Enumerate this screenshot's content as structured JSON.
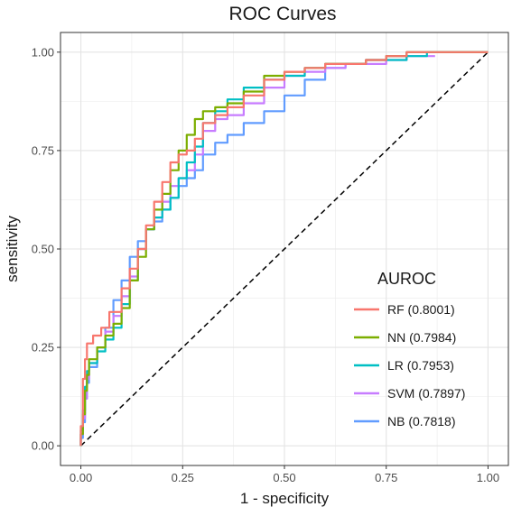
{
  "chart_data": {
    "type": "line",
    "title": "ROC Curves",
    "xlabel": "1 - specificity",
    "ylabel": "sensitivity",
    "xlim": [
      -0.05,
      1.05
    ],
    "ylim": [
      -0.05,
      1.05
    ],
    "x_ticks": [
      0,
      0.25,
      0.5,
      0.75,
      1
    ],
    "x_tick_labels": [
      "0.00",
      "0.25",
      "0.50",
      "0.75",
      "1.00"
    ],
    "y_ticks": [
      0,
      0.25,
      0.5,
      0.75,
      1
    ],
    "y_tick_labels": [
      "0.00",
      "0.25",
      "0.50",
      "0.75",
      "1.00"
    ],
    "grid": true,
    "panel_border": true,
    "legend": {
      "title": "AUROC",
      "position": "inside-bottom-right"
    },
    "reference_line": {
      "style": "dashed",
      "color": "#000000",
      "x": [
        0,
        1
      ],
      "y": [
        0,
        1
      ]
    },
    "series": [
      {
        "name": "RF (0.8001)",
        "color": "#F8766D",
        "x": [
          0,
          0.005,
          0.005,
          0.01,
          0.015,
          0.03,
          0.05,
          0.07,
          0.1,
          0.12,
          0.14,
          0.16,
          0.18,
          0.2,
          0.22,
          0.24,
          0.26,
          0.28,
          0.3,
          0.33,
          0.36,
          0.4,
          0.45,
          0.5,
          0.55,
          0.6,
          0.65,
          0.7,
          0.75,
          0.8,
          0.85,
          0.9,
          0.95,
          1
        ],
        "y": [
          0,
          0.05,
          0.1,
          0.17,
          0.22,
          0.26,
          0.28,
          0.3,
          0.34,
          0.4,
          0.45,
          0.5,
          0.56,
          0.62,
          0.67,
          0.72,
          0.74,
          0.75,
          0.78,
          0.82,
          0.84,
          0.86,
          0.89,
          0.93,
          0.95,
          0.96,
          0.97,
          0.97,
          0.98,
          0.99,
          1,
          1,
          1,
          1
        ]
      },
      {
        "name": "NN (0.7984)",
        "color": "#7CAE00",
        "x": [
          0,
          0.005,
          0.01,
          0.015,
          0.02,
          0.04,
          0.06,
          0.08,
          0.1,
          0.12,
          0.14,
          0.16,
          0.18,
          0.2,
          0.22,
          0.24,
          0.26,
          0.28,
          0.3,
          0.33,
          0.36,
          0.4,
          0.45,
          0.5,
          0.55,
          0.6,
          0.65,
          0.7,
          0.75,
          0.8,
          0.85,
          0.9,
          0.95,
          1
        ],
        "y": [
          0,
          0.03,
          0.08,
          0.14,
          0.18,
          0.22,
          0.25,
          0.28,
          0.31,
          0.35,
          0.42,
          0.48,
          0.55,
          0.6,
          0.64,
          0.7,
          0.75,
          0.79,
          0.83,
          0.85,
          0.86,
          0.87,
          0.9,
          0.94,
          0.95,
          0.96,
          0.97,
          0.97,
          0.98,
          0.99,
          1,
          1,
          1,
          1
        ]
      },
      {
        "name": "LR (0.7953)",
        "color": "#00BFC4",
        "x": [
          0,
          0.005,
          0.01,
          0.015,
          0.02,
          0.04,
          0.06,
          0.08,
          0.1,
          0.12,
          0.14,
          0.16,
          0.18,
          0.2,
          0.22,
          0.24,
          0.26,
          0.28,
          0.3,
          0.33,
          0.36,
          0.4,
          0.45,
          0.5,
          0.55,
          0.6,
          0.65,
          0.7,
          0.75,
          0.8,
          0.85,
          0.9,
          0.95,
          1
        ],
        "y": [
          0,
          0.04,
          0.09,
          0.15,
          0.19,
          0.21,
          0.24,
          0.27,
          0.3,
          0.36,
          0.42,
          0.5,
          0.55,
          0.58,
          0.6,
          0.63,
          0.68,
          0.72,
          0.76,
          0.82,
          0.85,
          0.88,
          0.91,
          0.93,
          0.94,
          0.96,
          0.97,
          0.97,
          0.98,
          0.98,
          0.99,
          1,
          1,
          1
        ]
      },
      {
        "name": "SVM (0.7897)",
        "color": "#C77CFF",
        "x": [
          0,
          0.005,
          0.01,
          0.015,
          0.02,
          0.04,
          0.06,
          0.08,
          0.1,
          0.12,
          0.14,
          0.16,
          0.18,
          0.2,
          0.22,
          0.24,
          0.26,
          0.28,
          0.3,
          0.33,
          0.36,
          0.4,
          0.45,
          0.5,
          0.55,
          0.6,
          0.65,
          0.7,
          0.75,
          0.8,
          0.85,
          0.87
        ],
        "y": [
          0,
          0.03,
          0.07,
          0.12,
          0.17,
          0.21,
          0.25,
          0.29,
          0.33,
          0.38,
          0.43,
          0.5,
          0.55,
          0.58,
          0.62,
          0.66,
          0.68,
          0.7,
          0.74,
          0.8,
          0.83,
          0.84,
          0.87,
          0.91,
          0.94,
          0.95,
          0.96,
          0.97,
          0.97,
          0.98,
          0.99,
          0.99
        ]
      },
      {
        "name": "NB (0.7818)",
        "color": "#619CFF",
        "x": [
          0,
          0.005,
          0.01,
          0.015,
          0.02,
          0.04,
          0.06,
          0.08,
          0.1,
          0.12,
          0.14,
          0.16,
          0.18,
          0.2,
          0.22,
          0.24,
          0.26,
          0.28,
          0.3,
          0.33,
          0.36,
          0.4,
          0.45,
          0.5,
          0.55,
          0.6,
          0.65,
          0.7,
          0.75,
          0.8,
          0.85,
          0.9,
          0.95,
          1
        ],
        "y": [
          0,
          0.02,
          0.06,
          0.12,
          0.16,
          0.2,
          0.25,
          0.3,
          0.37,
          0.42,
          0.48,
          0.52,
          0.55,
          0.57,
          0.6,
          0.63,
          0.66,
          0.68,
          0.7,
          0.74,
          0.77,
          0.79,
          0.82,
          0.85,
          0.89,
          0.93,
          0.96,
          0.97,
          0.98,
          0.99,
          1,
          1,
          1,
          1
        ]
      }
    ]
  }
}
